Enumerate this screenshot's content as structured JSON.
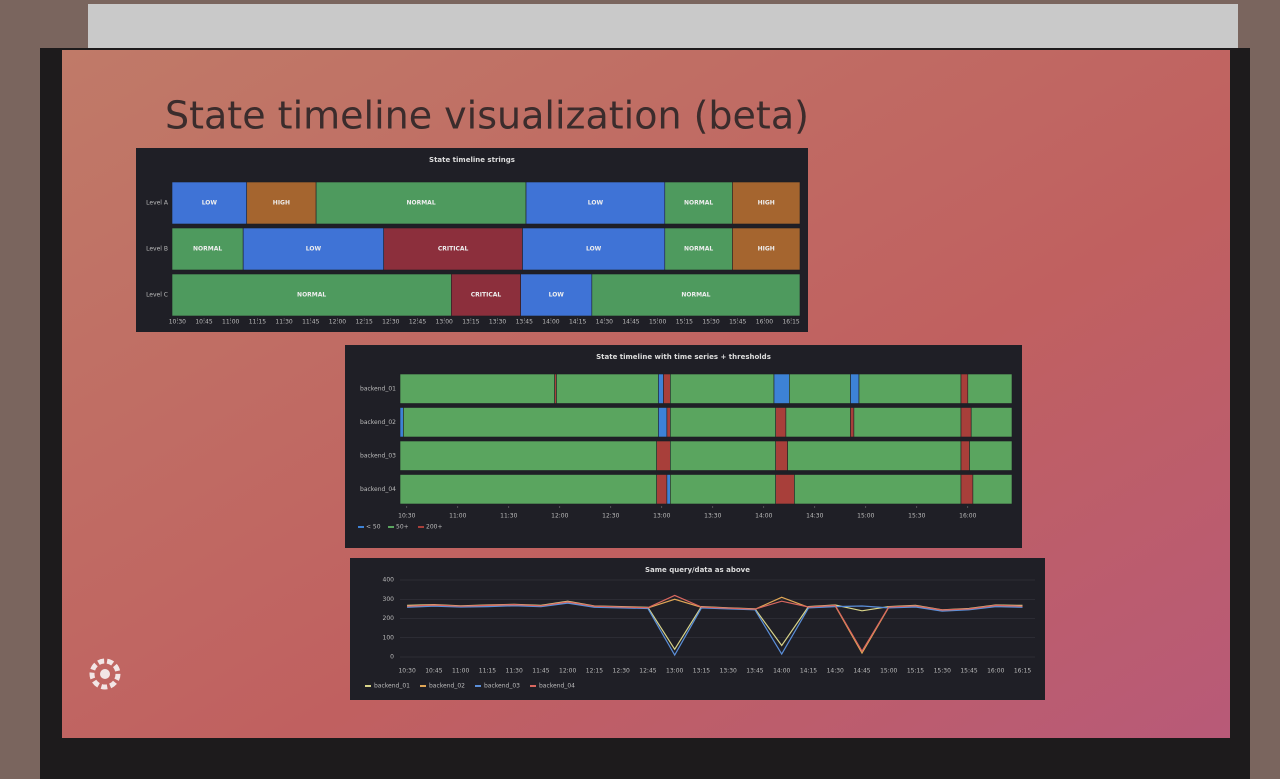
{
  "slide_title": "State timeline visualization (beta)",
  "chart_data": [
    {
      "type": "state-timeline",
      "title": "State timeline strings",
      "show_values": true,
      "xlim": [
        "10:27",
        "16:20"
      ],
      "xticks": [
        "10:30",
        "10:45",
        "11:00",
        "11:15",
        "11:30",
        "11:45",
        "12:00",
        "12:15",
        "12:30",
        "12:45",
        "13:00",
        "13:15",
        "13:30",
        "13:45",
        "14:00",
        "14:15",
        "14:30",
        "14:45",
        "15:00",
        "15:15",
        "15:30",
        "15:45",
        "16:00",
        "16:15"
      ],
      "state_colors": {
        "LOW": "#3f73d6",
        "HIGH": "#a5652f",
        "NORMAL": "#4e9a5e",
        "CRITICAL": "#8c2f3c"
      },
      "rows": [
        {
          "name": "Level A",
          "segments": [
            {
              "start": "10:27",
              "end": "11:09",
              "state": "LOW"
            },
            {
              "start": "11:09",
              "end": "11:48",
              "state": "HIGH"
            },
            {
              "start": "11:48",
              "end": "13:46",
              "state": "NORMAL"
            },
            {
              "start": "13:46",
              "end": "15:04",
              "state": "LOW"
            },
            {
              "start": "15:04",
              "end": "15:42",
              "state": "NORMAL"
            },
            {
              "start": "15:42",
              "end": "16:20",
              "state": "HIGH"
            }
          ]
        },
        {
          "name": "Level B",
          "segments": [
            {
              "start": "10:27",
              "end": "11:07",
              "state": "NORMAL"
            },
            {
              "start": "11:07",
              "end": "12:26",
              "state": "LOW"
            },
            {
              "start": "12:26",
              "end": "13:44",
              "state": "CRITICAL"
            },
            {
              "start": "13:44",
              "end": "15:04",
              "state": "LOW"
            },
            {
              "start": "15:04",
              "end": "15:42",
              "state": "NORMAL"
            },
            {
              "start": "15:42",
              "end": "16:20",
              "state": "HIGH"
            }
          ]
        },
        {
          "name": "Level C",
          "segments": [
            {
              "start": "10:27",
              "end": "13:04",
              "state": "NORMAL"
            },
            {
              "start": "13:04",
              "end": "13:43",
              "state": "CRITICAL"
            },
            {
              "start": "13:43",
              "end": "14:23",
              "state": "LOW"
            },
            {
              "start": "14:23",
              "end": "16:20",
              "state": "NORMAL"
            }
          ]
        }
      ]
    },
    {
      "type": "state-timeline",
      "title": "State timeline with time series + thresholds",
      "show_values": false,
      "xlim": [
        "10:26",
        "16:26"
      ],
      "xticks": [
        "10:30",
        "11:00",
        "11:30",
        "12:00",
        "12:30",
        "13:00",
        "13:30",
        "14:00",
        "14:30",
        "15:00",
        "15:30",
        "16:00"
      ],
      "legend": [
        {
          "name": "< 50",
          "color": "#3d82d6"
        },
        {
          "name": "50+",
          "color": "#5aa55f"
        },
        {
          "name": "200+",
          "color": "#a83f3a"
        }
      ],
      "rows": [
        {
          "name": "backend_01",
          "segments": [
            {
              "start": "10:26",
              "end": "11:57",
              "state": "50+"
            },
            {
              "start": "11:57",
              "end": "11:58",
              "state": "200+"
            },
            {
              "start": "11:58",
              "end": "12:58",
              "state": "50+"
            },
            {
              "start": "12:58",
              "end": "13:01",
              "state": "< 50"
            },
            {
              "start": "13:01",
              "end": "13:05",
              "state": "200+"
            },
            {
              "start": "13:05",
              "end": "14:06",
              "state": "50+"
            },
            {
              "start": "14:06",
              "end": "14:15",
              "state": "< 50"
            },
            {
              "start": "14:15",
              "end": "14:51",
              "state": "50+"
            },
            {
              "start": "14:51",
              "end": "14:56",
              "state": "< 50"
            },
            {
              "start": "14:56",
              "end": "15:56",
              "state": "50+"
            },
            {
              "start": "15:56",
              "end": "16:00",
              "state": "200+"
            },
            {
              "start": "16:00",
              "end": "16:26",
              "state": "50+"
            }
          ]
        },
        {
          "name": "backend_02",
          "segments": [
            {
              "start": "10:26",
              "end": "10:28",
              "state": "< 50"
            },
            {
              "start": "10:28",
              "end": "12:58",
              "state": "50+"
            },
            {
              "start": "12:58",
              "end": "13:03",
              "state": "< 50"
            },
            {
              "start": "13:03",
              "end": "13:05",
              "state": "200+"
            },
            {
              "start": "13:05",
              "end": "14:07",
              "state": "50+"
            },
            {
              "start": "14:07",
              "end": "14:13",
              "state": "200+"
            },
            {
              "start": "14:13",
              "end": "14:51",
              "state": "50+"
            },
            {
              "start": "14:51",
              "end": "14:53",
              "state": "200+"
            },
            {
              "start": "14:53",
              "end": "15:56",
              "state": "50+"
            },
            {
              "start": "15:56",
              "end": "16:02",
              "state": "200+"
            },
            {
              "start": "16:02",
              "end": "16:26",
              "state": "50+"
            }
          ]
        },
        {
          "name": "backend_03",
          "segments": [
            {
              "start": "10:26",
              "end": "12:57",
              "state": "50+"
            },
            {
              "start": "12:57",
              "end": "13:05",
              "state": "200+"
            },
            {
              "start": "13:05",
              "end": "14:07",
              "state": "50+"
            },
            {
              "start": "14:07",
              "end": "14:14",
              "state": "200+"
            },
            {
              "start": "14:14",
              "end": "15:56",
              "state": "50+"
            },
            {
              "start": "15:56",
              "end": "16:01",
              "state": "200+"
            },
            {
              "start": "16:01",
              "end": "16:26",
              "state": "50+"
            }
          ]
        },
        {
          "name": "backend_04",
          "segments": [
            {
              "start": "10:26",
              "end": "12:57",
              "state": "50+"
            },
            {
              "start": "12:57",
              "end": "13:03",
              "state": "200+"
            },
            {
              "start": "13:03",
              "end": "13:05",
              "state": "< 50"
            },
            {
              "start": "13:05",
              "end": "14:07",
              "state": "50+"
            },
            {
              "start": "14:07",
              "end": "14:18",
              "state": "200+"
            },
            {
              "start": "14:18",
              "end": "15:56",
              "state": "50+"
            },
            {
              "start": "15:56",
              "end": "16:03",
              "state": "200+"
            },
            {
              "start": "16:03",
              "end": "16:26",
              "state": "50+"
            }
          ]
        }
      ]
    },
    {
      "type": "line",
      "title": "Same query/data as above",
      "x": [
        "10:30",
        "10:45",
        "11:00",
        "11:15",
        "11:30",
        "11:45",
        "12:00",
        "12:15",
        "12:30",
        "12:45",
        "13:00",
        "13:15",
        "13:30",
        "13:45",
        "14:00",
        "14:15",
        "14:30",
        "14:45",
        "15:00",
        "15:15",
        "15:30",
        "15:45",
        "16:00",
        "16:15"
      ],
      "xlim": [
        "10:26",
        "16:22"
      ],
      "ylim": [
        0,
        400
      ],
      "yticks": [
        0,
        100,
        200,
        300,
        400
      ],
      "series": [
        {
          "name": "backend_01",
          "color": "#d8d48a",
          "values": [
            268,
            272,
            266,
            270,
            274,
            268,
            290,
            265,
            262,
            258,
            40,
            262,
            255,
            250,
            60,
            262,
            270,
            240,
            262,
            268,
            245,
            252,
            270,
            268
          ]
        },
        {
          "name": "backend_02",
          "color": "#e0a656",
          "values": [
            262,
            268,
            262,
            266,
            270,
            264,
            284,
            262,
            258,
            255,
            300,
            258,
            252,
            248,
            310,
            258,
            266,
            20,
            258,
            264,
            242,
            248,
            266,
            262
          ]
        },
        {
          "name": "backend_03",
          "color": "#5b8fd9",
          "values": [
            258,
            264,
            260,
            262,
            266,
            262,
            280,
            258,
            255,
            252,
            10,
            255,
            250,
            245,
            15,
            255,
            262,
            265,
            255,
            260,
            238,
            245,
            262,
            258
          ]
        },
        {
          "name": "backend_04",
          "color": "#d9675f",
          "values": [
            264,
            270,
            264,
            268,
            272,
            266,
            286,
            264,
            260,
            256,
            320,
            260,
            254,
            249,
            290,
            260,
            268,
            30,
            260,
            266,
            244,
            250,
            268,
            264
          ]
        }
      ]
    }
  ]
}
